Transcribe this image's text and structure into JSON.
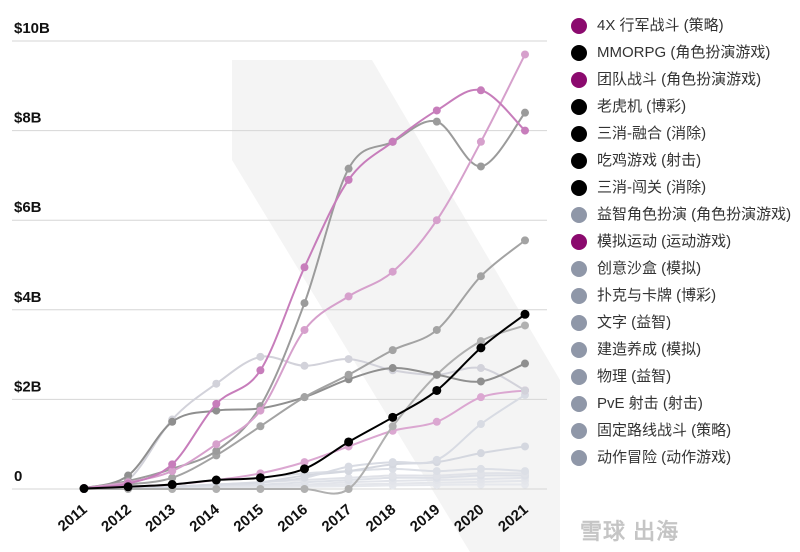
{
  "chart_data": {
    "type": "line",
    "title": "",
    "xlabel": "",
    "ylabel": "",
    "categories": [
      "2011",
      "2012",
      "2013",
      "2014",
      "2015",
      "2016",
      "2017",
      "2018",
      "2019",
      "2020",
      "2021"
    ],
    "ylim": [
      0,
      10
    ],
    "yticks": [
      {
        "value": 0,
        "label": "0"
      },
      {
        "value": 2,
        "label": "$2B"
      },
      {
        "value": 4,
        "label": "$4B"
      },
      {
        "value": 6,
        "label": "$6B"
      },
      {
        "value": 8,
        "label": "$8B"
      },
      {
        "value": 10,
        "label": "$10B"
      }
    ],
    "grid": true,
    "legend_position": "right",
    "series": [
      {
        "name": "4X 行军战斗 (策略)",
        "color": "#c77dbb",
        "legend_color": "#8b0a6e",
        "values": [
          0.02,
          0.12,
          0.55,
          1.9,
          2.65,
          4.95,
          6.9,
          7.75,
          8.45,
          8.9,
          8.0
        ]
      },
      {
        "name": "MMORPG (角色扮演游戏)",
        "color": "#000000",
        "legend_color": "#000000",
        "values": [
          0.01,
          0.05,
          0.1,
          0.2,
          0.25,
          0.45,
          1.05,
          1.6,
          2.2,
          3.15,
          3.9
        ]
      },
      {
        "name": "团队战斗 (角色扮演游戏)",
        "color": "#d6a0cc",
        "legend_color": "#8b0a6e",
        "values": [
          0.02,
          0.15,
          0.4,
          1.0,
          1.75,
          3.55,
          4.3,
          4.85,
          6.0,
          7.75,
          9.7
        ]
      },
      {
        "name": "老虎机 (博彩)",
        "color": "#9b9b9b",
        "legend_color": "#000000",
        "values": [
          0.02,
          0.18,
          0.45,
          0.85,
          1.85,
          4.15,
          7.15,
          7.75,
          8.2,
          7.2,
          8.4
        ]
      },
      {
        "name": "三消-融合 (消除)",
        "color": "#a3a3a3",
        "legend_color": "#000000",
        "values": [
          0.02,
          0.1,
          0.25,
          0.75,
          1.4,
          2.05,
          2.55,
          3.1,
          3.55,
          4.75,
          5.55
        ]
      },
      {
        "name": "吃鸡游戏 (射击)",
        "color": "#8f8f8f",
        "legend_color": "#000000",
        "values": [
          0.02,
          0.3,
          1.5,
          1.75,
          1.8,
          2.05,
          2.45,
          2.7,
          2.55,
          2.4,
          2.8
        ]
      },
      {
        "name": "三消-闯关 (消除)",
        "color": "#b0b0b0",
        "legend_color": "#000000",
        "values": [
          0.0,
          0.0,
          0.0,
          0.0,
          0.0,
          0.0,
          0.0,
          1.4,
          2.55,
          3.3,
          3.65
        ]
      },
      {
        "name": "益智角色扮演 (角色扮演游戏)",
        "color": "#d2d2da",
        "legend_color": "#8f97a8",
        "values": [
          0.02,
          0.2,
          1.55,
          2.35,
          2.95,
          2.75,
          2.9,
          2.65,
          2.55,
          2.7,
          2.2
        ]
      },
      {
        "name": "模拟运动 (运动游戏)",
        "color": "#dba7d1",
        "legend_color": "#8b0a6e",
        "values": [
          0.0,
          0.05,
          0.1,
          0.2,
          0.35,
          0.6,
          0.95,
          1.3,
          1.5,
          2.05,
          2.2
        ]
      },
      {
        "name": "创意沙盒 (模拟)",
        "color": "#d8dbe3",
        "legend_color": "#8f97a8",
        "values": [
          0.0,
          0.02,
          0.05,
          0.1,
          0.15,
          0.25,
          0.5,
          0.6,
          0.65,
          1.45,
          2.1
        ]
      },
      {
        "name": "扑克与卡牌 (博彩)",
        "color": "#d4d7df",
        "legend_color": "#8f97a8",
        "values": [
          0.0,
          0.02,
          0.05,
          0.1,
          0.15,
          0.3,
          0.4,
          0.55,
          0.6,
          0.8,
          0.95
        ]
      },
      {
        "name": "文字 (益智)",
        "color": "#dcdfe6",
        "legend_color": "#8f97a8",
        "values": [
          0.0,
          0.02,
          0.1,
          0.2,
          0.25,
          0.35,
          0.4,
          0.45,
          0.4,
          0.45,
          0.4
        ]
      },
      {
        "name": "建造养成 (模拟)",
        "color": "#e0e2e8",
        "legend_color": "#8f97a8",
        "values": [
          0.0,
          0.02,
          0.05,
          0.1,
          0.15,
          0.2,
          0.25,
          0.3,
          0.3,
          0.35,
          0.35
        ]
      },
      {
        "name": "物理 (益智)",
        "color": "#dde0e7",
        "legend_color": "#8f97a8",
        "values": [
          0.0,
          0.02,
          0.05,
          0.08,
          0.1,
          0.15,
          0.2,
          0.25,
          0.25,
          0.3,
          0.3
        ]
      },
      {
        "name": "PvE 射击 (射击)",
        "color": "#e2e4ea",
        "legend_color": "#8f97a8",
        "values": [
          0.0,
          0.01,
          0.03,
          0.05,
          0.08,
          0.1,
          0.15,
          0.18,
          0.2,
          0.22,
          0.25
        ]
      },
      {
        "name": "固定路线战斗 (策略)",
        "color": "#e4e6eb",
        "legend_color": "#8f97a8",
        "values": [
          0.0,
          0.01,
          0.02,
          0.04,
          0.06,
          0.08,
          0.1,
          0.12,
          0.14,
          0.16,
          0.18
        ]
      },
      {
        "name": "动作冒险 (动作游戏)",
        "color": "#e6e8ed",
        "legend_color": "#8f97a8",
        "values": [
          0.0,
          0.01,
          0.02,
          0.03,
          0.04,
          0.05,
          0.06,
          0.08,
          0.09,
          0.1,
          0.1
        ]
      }
    ]
  },
  "watermark": "雪球 出海"
}
